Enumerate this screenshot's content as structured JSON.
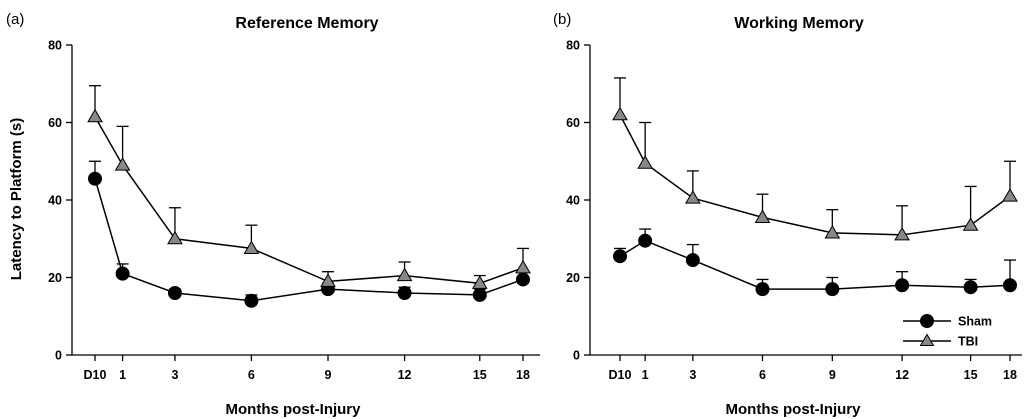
{
  "figure": {
    "ylabel": "Latency to Platform (s)"
  },
  "legend": {
    "items": [
      {
        "name": "Sham",
        "marker": "circle",
        "color": "#000000"
      },
      {
        "name": "TBI",
        "marker": "triangle",
        "color": "#888888"
      }
    ],
    "placement": "bottom-right of panel (b)"
  },
  "chart_data": [
    {
      "type": "line",
      "panel": "(a)",
      "title": "Reference Memory",
      "xlabel": "Months post-Injury",
      "ylabel": "Latency to Platform (s)",
      "categories": [
        "D10",
        "1",
        "3",
        "6",
        "9",
        "12",
        "15",
        "18"
      ],
      "ylim": [
        0,
        80
      ],
      "yticks": [
        0,
        20,
        40,
        60,
        80
      ],
      "grid": false,
      "series": [
        {
          "name": "Sham",
          "marker": "circle",
          "color": "#000000",
          "values": [
            45.5,
            21,
            16,
            14,
            17,
            16,
            15.5,
            19.5
          ],
          "error_upper": [
            4.5,
            2.5,
            1,
            1.5,
            1.5,
            1.5,
            1.5,
            2
          ]
        },
        {
          "name": "TBI",
          "marker": "triangle",
          "color": "#888888",
          "values": [
            61.5,
            49,
            30,
            27.5,
            19,
            20.5,
            18.5,
            22.5
          ],
          "error_upper": [
            8,
            10,
            8,
            6,
            2.5,
            3.5,
            2,
            5
          ]
        }
      ]
    },
    {
      "type": "line",
      "panel": "(b)",
      "title": "Working Memory",
      "xlabel": "Months post-Injury",
      "ylabel": "",
      "categories": [
        "D10",
        "1",
        "3",
        "6",
        "9",
        "12",
        "15",
        "18"
      ],
      "ylim": [
        0,
        80
      ],
      "yticks": [
        0,
        20,
        40,
        60,
        80
      ],
      "grid": false,
      "series": [
        {
          "name": "Sham",
          "marker": "circle",
          "color": "#000000",
          "values": [
            25.5,
            29.5,
            24.5,
            17,
            17,
            18,
            17.5,
            18
          ],
          "error_upper": [
            2,
            3,
            4,
            2.5,
            3,
            3.5,
            2,
            6.5
          ]
        },
        {
          "name": "TBI",
          "marker": "triangle",
          "color": "#888888",
          "values": [
            62,
            49.5,
            40.5,
            35.5,
            31.5,
            31,
            33.5,
            41
          ],
          "error_upper": [
            9.5,
            10.5,
            7,
            6,
            6,
            7.5,
            10,
            9
          ]
        }
      ]
    }
  ]
}
